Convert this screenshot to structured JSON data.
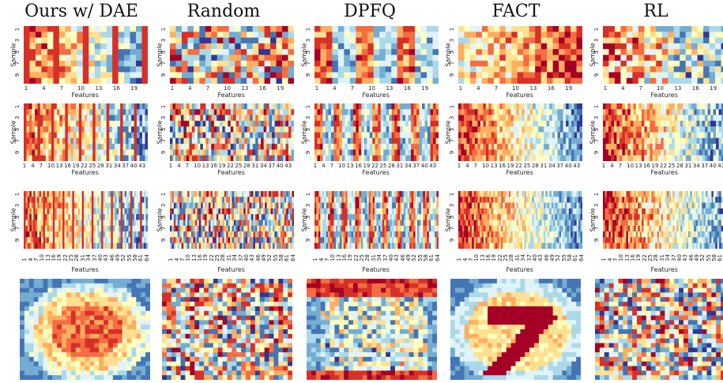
{
  "columns": [
    "Ours w/ DAE",
    "Random",
    "DPFQ",
    "FACT",
    "RL"
  ],
  "axes": {
    "xlabel": "Features",
    "ylabel": "Sample",
    "ytick_labels": [
      "1",
      "3",
      "5",
      "7",
      "9"
    ]
  },
  "rows": [
    {
      "n_features": 21,
      "xtick_labels": [
        "1",
        "4",
        "7",
        "10",
        "13",
        "16",
        "19"
      ]
    },
    {
      "n_features": 45,
      "xtick_labels": [
        "1",
        "4",
        "7",
        "10",
        "13",
        "16",
        "19",
        "22",
        "25",
        "28",
        "31",
        "34",
        "37",
        "40",
        "43"
      ]
    },
    {
      "n_features": 64,
      "xtick_labels": [
        "1",
        "4",
        "7",
        "10",
        "13",
        "16",
        "19",
        "22",
        "25",
        "28",
        "31",
        "34",
        "37",
        "40",
        "43",
        "46",
        "49",
        "52",
        "55",
        "58",
        "61",
        "64"
      ]
    }
  ],
  "colors": {
    "palette": [
      "#313695",
      "#4575b4",
      "#74add1",
      "#abd9e9",
      "#e0f3f8",
      "#ffffbf",
      "#fee090",
      "#fdae61",
      "#f46d43",
      "#d73027",
      "#a50026"
    ]
  }
}
